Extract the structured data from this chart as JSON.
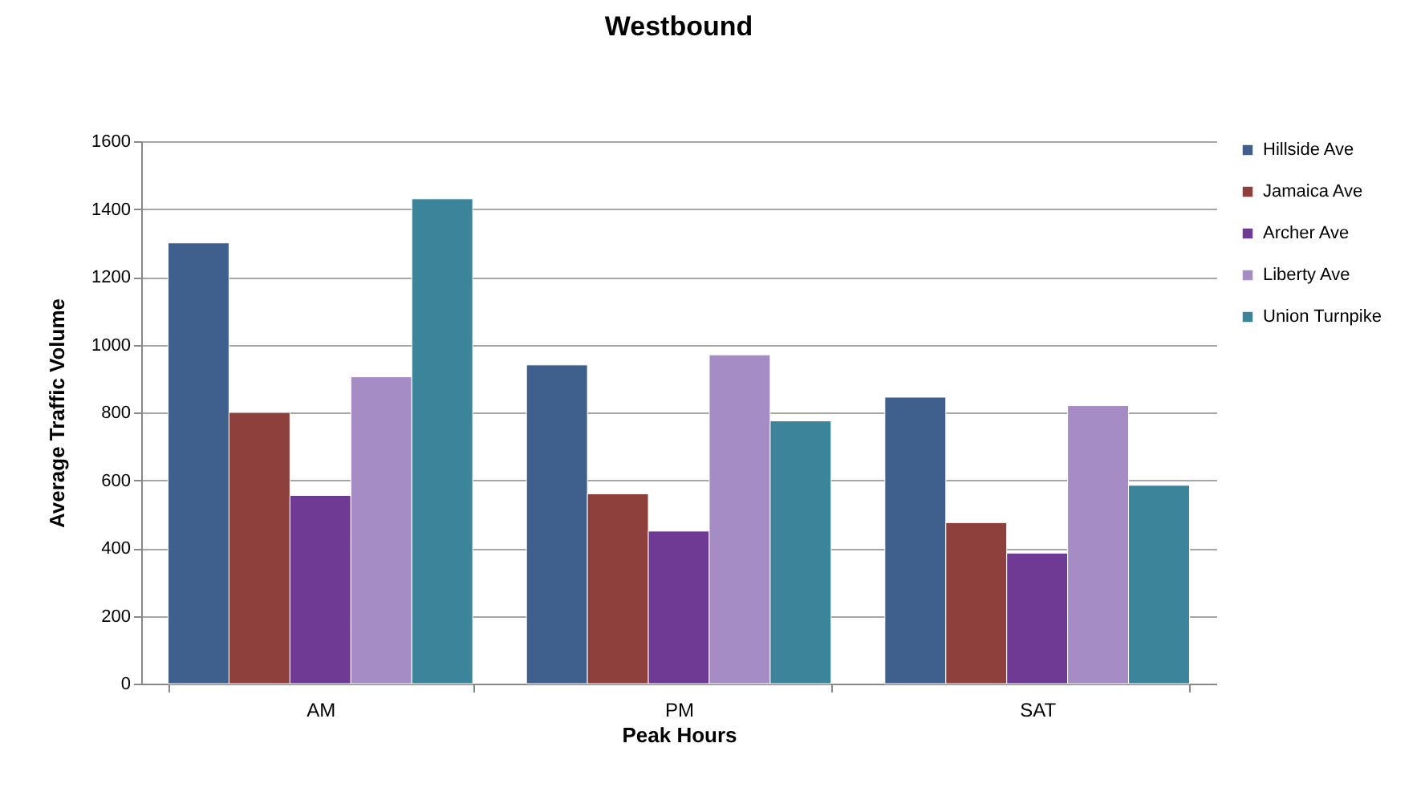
{
  "chart_data": {
    "type": "bar",
    "title": "Westbound",
    "xlabel": "Peak Hours",
    "ylabel": "Average Traffic  Volume",
    "categories": [
      "AM",
      "PM",
      "SAT"
    ],
    "series": [
      {
        "name": "Hillside Ave",
        "color": "#3f5f8c",
        "values": [
          1300,
          940,
          845
        ]
      },
      {
        "name": "Jamaica Ave",
        "color": "#8e403d",
        "values": [
          800,
          560,
          475
        ]
      },
      {
        "name": "Archer Ave",
        "color": "#6e3a93",
        "values": [
          555,
          450,
          385
        ]
      },
      {
        "name": "Liberty Ave",
        "color": "#a68cc4",
        "values": [
          905,
          970,
          820
        ]
      },
      {
        "name": "Union Turnpike",
        "color": "#3b8499",
        "values": [
          1430,
          775,
          585
        ]
      }
    ],
    "ylim": [
      0,
      1600
    ],
    "yticks": [
      0,
      200,
      400,
      600,
      800,
      1000,
      1200,
      1400,
      1600
    ],
    "grid": "y",
    "legend": "right"
  }
}
